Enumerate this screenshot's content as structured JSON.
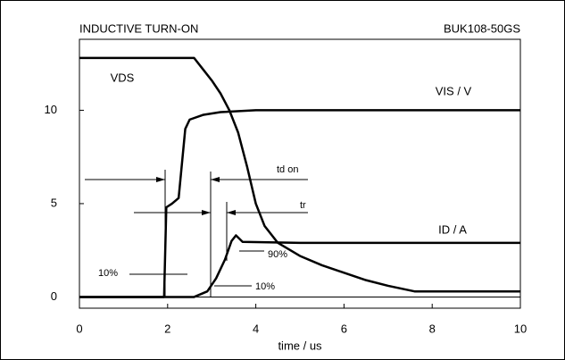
{
  "chart_data": {
    "type": "line",
    "title": "INDUCTIVE TURN-ON",
    "subtitle": "BUK108-50GS",
    "x_label": "time / us",
    "xlim": [
      0,
      10
    ],
    "xticks": [
      0,
      2,
      4,
      6,
      8,
      10
    ],
    "ylim": [
      -0.6,
      13.8
    ],
    "yticks": [
      0,
      5,
      10
    ],
    "series": [
      {
        "name": "VDS",
        "color": "#000000",
        "x": [
          0,
          2.6,
          2.8,
          3.0,
          3.2,
          3.4,
          3.6,
          3.8,
          4.0,
          4.2,
          4.5,
          5.0,
          5.5,
          6.0,
          6.5,
          7.0,
          7.6,
          10
        ],
        "values": [
          12.8,
          12.8,
          12.2,
          11.6,
          10.9,
          10.0,
          8.8,
          7.0,
          5.0,
          3.8,
          2.9,
          2.2,
          1.7,
          1.3,
          0.9,
          0.6,
          0.3,
          0.3
        ]
      },
      {
        "name": "VIS / V",
        "color": "#000000",
        "x": [
          0,
          1.92,
          1.97,
          2.1,
          2.25,
          2.4,
          2.5,
          2.8,
          3.2,
          4.0,
          10
        ],
        "values": [
          0,
          0,
          4.8,
          5.0,
          5.3,
          9.0,
          9.5,
          9.75,
          9.9,
          10,
          10
        ]
      },
      {
        "name": "ID / A",
        "color": "#000000",
        "x": [
          0,
          2.6,
          2.9,
          3.1,
          3.3,
          3.45,
          3.55,
          3.7,
          5.0,
          10
        ],
        "values": [
          0,
          0,
          0.3,
          1.0,
          2.0,
          3.0,
          3.3,
          2.95,
          2.9,
          2.9
        ]
      }
    ],
    "annotations": [
      "td on",
      "tr",
      "90%",
      "10%",
      "10%"
    ]
  }
}
